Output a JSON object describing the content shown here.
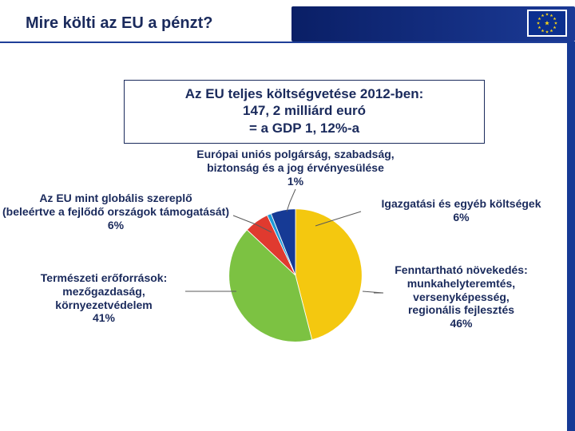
{
  "header": {
    "title": "Mire költi az EU a pénzt?",
    "title_color": "#1a2a5c",
    "bar_color": "#163a95",
    "flag": {
      "bg": "#0b2f8f",
      "star_color": "#f7d417"
    }
  },
  "summary": {
    "line1": "Az EU teljes költségvetése 2012-ben:",
    "line2": "147, 2 milliárd euró",
    "line3": "= a GDP 1, 12%-a",
    "border_color": "#1a2a5c"
  },
  "chart": {
    "type": "pie",
    "background_color": "#ffffff",
    "label_color": "#1a2a5c",
    "label_fontsize": 14,
    "leader_color": "#5a5a5a",
    "slices": [
      {
        "key": "sustainable_growth",
        "value": 46,
        "color": "#f4c80f",
        "start": -90
      },
      {
        "key": "natural_resources",
        "value": 41,
        "color": "#7cc242",
        "start": 75.6
      },
      {
        "key": "global_player",
        "value": 6,
        "color": "#e03a2f",
        "start": 223.2
      },
      {
        "key": "citizenship",
        "value": 1,
        "color": "#1f9ad6",
        "start": 244.8
      },
      {
        "key": "admin_other",
        "value": 6,
        "color": "#163a95",
        "start": 248.4
      }
    ],
    "labels": {
      "citizenship": "Európai uniós polgárság, szabadság,\nbiztonság és a jog érvényesülése\n1%",
      "global_player": "Az EU mint globális szereplő\n(beleértve a fejlődő országok támogatását)\n6%",
      "natural_resources": "Természeti erőforrások:\nmezőgazdaság,\nkörnyezetvédelem\n41%",
      "sustainable_growth": "Fenntartható növekedés:\nmunkahelyteremtés,\nversenyképesség,\nregionális fejlesztés\n46%",
      "admin_other": "Igazgatási és egyéb költségek\n6%"
    }
  }
}
